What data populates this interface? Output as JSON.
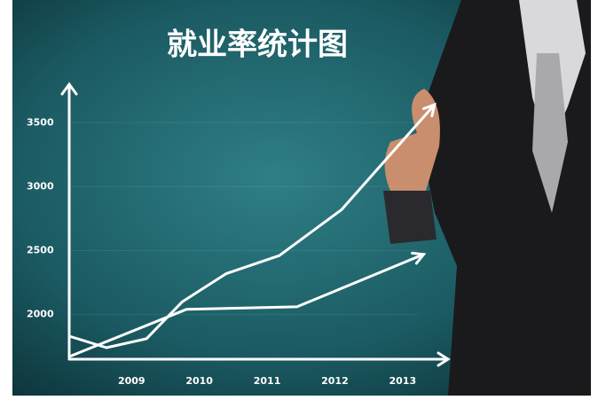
{
  "chart_data": {
    "type": "line",
    "title": "就业率统计图",
    "xlim": [
      2008.08,
      2013.67
    ],
    "xticks": [
      2009,
      2010,
      2011,
      2012,
      2013
    ],
    "ylim": [
      1650,
      3800
    ],
    "yticks": [
      2000,
      2500,
      3000,
      3500
    ],
    "series": [
      {
        "color": "#ffffff",
        "x": [
          2008.08,
          2008.63,
          2009.22,
          2009.75,
          2010.4,
          2011.18,
          2012.1,
          2013.47
        ],
        "values": [
          1830,
          1740,
          1810,
          2100,
          2320,
          2460,
          2820,
          3640
        ]
      },
      {
        "color": "#ffffff",
        "x": [
          2008.08,
          2009.81,
          2011.44,
          2013.31
        ],
        "values": [
          1670,
          2040,
          2060,
          2470
        ]
      }
    ]
  }
}
